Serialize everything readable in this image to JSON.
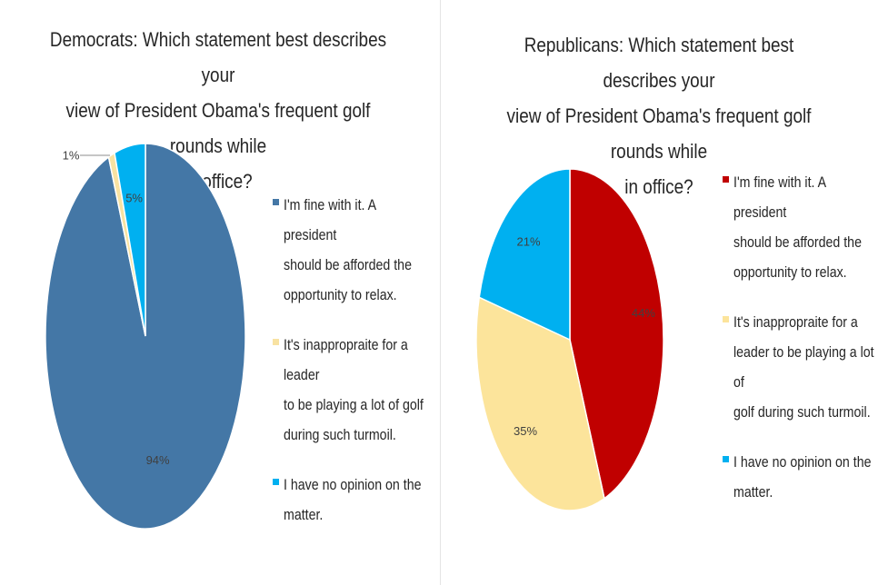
{
  "chart_data": [
    {
      "type": "pie",
      "title": "Democrats: Which statement best describes your view of President Obama's frequent golf rounds while in office?",
      "title_lines": [
        "Democrats: Which statement best describes your",
        "view of President Obama's frequent golf rounds while",
        "in office?"
      ],
      "categories": [
        "I'm fine with it. A president should be afforded the opportunity to relax.",
        "It's inappropraite for a leader to be playing a lot of golf during such turmoil.",
        "I have no opinion on the matter."
      ],
      "legend_lines": [
        [
          "I'm fine with it. A president",
          "should be afforded the",
          "opportunity to relax."
        ],
        [
          "It's inappropraite for a leader",
          "to be playing a lot of golf",
          "during such turmoil."
        ],
        [
          "I have no opinion on the",
          "matter."
        ]
      ],
      "values": [
        94,
        1,
        5
      ],
      "data_labels": [
        "94%",
        "1%",
        "5%"
      ],
      "colors": [
        "#4477a6",
        "#f8e2a2",
        "#00b0f0"
      ],
      "legend_position": "right"
    },
    {
      "type": "pie",
      "title": "Republicans: Which statement best describes your view of President Obama's frequent golf rounds while in office?",
      "title_lines": [
        "Republicans: Which statement best describes your",
        "view of President Obama's frequent golf rounds while",
        "in office?"
      ],
      "categories": [
        "I'm fine with it. A president should be afforded the opportunity to relax.",
        "It's inappropraite for a leader to be playing a lot of golf during such turmoil.",
        "I have no opinion on the matter."
      ],
      "legend_lines": [
        [
          "I'm fine with it. A president",
          "should be afforded the",
          "opportunity to relax."
        ],
        [
          "It's inappropraite for a",
          "leader to be playing a lot of",
          "golf during such turmoil."
        ],
        [
          "I have no opinion on the",
          "matter."
        ]
      ],
      "values": [
        44,
        35,
        21
      ],
      "data_labels": [
        "44%",
        "35%",
        "21%"
      ],
      "colors": [
        "#c00000",
        "#fce49b",
        "#00b0f0"
      ],
      "legend_position": "right"
    }
  ]
}
